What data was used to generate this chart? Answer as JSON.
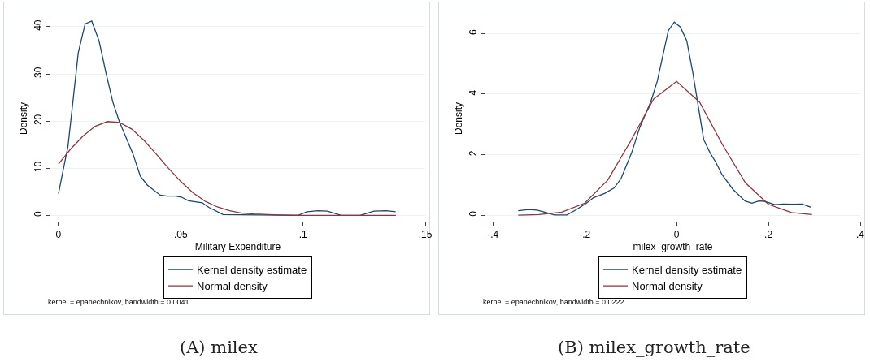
{
  "chart_data": [
    {
      "type": "line",
      "xlabel": "Military Expenditure",
      "ylabel": "Density",
      "xlim": [
        -0.0033,
        0.15
      ],
      "ylim": [
        -1.3,
        42.4
      ],
      "xticks": [
        0,
        {
          "value": 0.05,
          "label": ".05"
        },
        {
          "value": 0.1,
          "label": ".1"
        },
        {
          "value": 0.15,
          "label": ".15"
        }
      ],
      "yticks": [
        0,
        10,
        20,
        30,
        40
      ],
      "grid": "y",
      "legend": "bottom",
      "line_style": "solid",
      "marker": "none",
      "annotations": [
        "kernel = epanechnikov, bandwidth = 0.0041",
        "(A) milex"
      ],
      "series": [
        {
          "name": "Kernel density estimate",
          "color": "#1a476f",
          "x": [
            0,
            0.0039,
            0.0081,
            0.0109,
            0.0136,
            0.0166,
            0.0194,
            0.0222,
            0.0249,
            0.0305,
            0.0335,
            0.0364,
            0.0416,
            0.0446,
            0.0477,
            0.0502,
            0.0532,
            0.0588,
            0.0615,
            0.0673,
            0.098,
            0.1017,
            0.1062,
            0.11,
            0.1156,
            0.1234,
            0.129,
            0.134,
            0.1379
          ],
          "values": [
            4.6,
            14.7,
            34.5,
            40.6,
            41.2,
            37,
            30.3,
            24.1,
            19.9,
            13,
            8.3,
            6.4,
            4.3,
            4.1,
            4.1,
            3.9,
            3.1,
            2.7,
            1.7,
            0.2,
            0,
            0.8,
            1,
            0.9,
            0,
            0,
            0.9,
            1,
            0.8
          ]
        },
        {
          "name": "Normal density",
          "color": "#90353b",
          "x": [
            0,
            0.005,
            0.01,
            0.015,
            0.02,
            0.025,
            0.03,
            0.035,
            0.04,
            0.045,
            0.05,
            0.055,
            0.06,
            0.065,
            0.07,
            0.075,
            0.08,
            0.09,
            0.1,
            0.138
          ],
          "values": [
            10.9,
            14.1,
            16.8,
            18.9,
            19.9,
            19.7,
            18.3,
            15.9,
            13,
            10,
            7.2,
            4.8,
            3,
            1.8,
            1,
            0.5,
            0.3,
            0.1,
            0,
            0
          ]
        }
      ]
    },
    {
      "type": "line",
      "xlabel": "milex_growth_rate",
      "ylabel": "Density",
      "xlim": [
        -0.4164,
        0.4
      ],
      "ylim": [
        -0.21,
        6.6
      ],
      "xticks": [
        {
          "value": -0.4,
          "label": "-.4"
        },
        {
          "value": -0.2,
          "label": "-.2"
        },
        0,
        {
          "value": 0.2,
          "label": ".2"
        },
        {
          "value": 0.4,
          "label": ".4"
        }
      ],
      "yticks": [
        0,
        2,
        4,
        6
      ],
      "grid": "y",
      "legend": "bottom",
      "line_style": "solid",
      "marker": "none",
      "annotations": [
        "kernel = epanechnikov, bandwidth = 0.0222",
        "(B) milex_growth_rate"
      ],
      "series": [
        {
          "name": "Kernel density estimate",
          "color": "#1a476f",
          "x": [
            -0.345,
            -0.322,
            -0.304,
            -0.284,
            -0.266,
            -0.239,
            -0.219,
            -0.198,
            -0.181,
            -0.157,
            -0.136,
            -0.121,
            -0.098,
            -0.08,
            -0.056,
            -0.042,
            -0.018,
            -0.005,
            0.008,
            0.022,
            0.035,
            0.059,
            0.073,
            0.085,
            0.099,
            0.123,
            0.149,
            0.164,
            0.179,
            0.191,
            0.214,
            0.232,
            0.255,
            0.273,
            0.293
          ],
          "values": [
            0.15,
            0.19,
            0.17,
            0.09,
            0.01,
            0.01,
            0.18,
            0.38,
            0.58,
            0.72,
            0.9,
            1.21,
            2.06,
            2.91,
            3.76,
            4.43,
            6.1,
            6.38,
            6.22,
            5.77,
            4.74,
            2.5,
            2.06,
            1.76,
            1.34,
            0.85,
            0.47,
            0.4,
            0.47,
            0.46,
            0.35,
            0.37,
            0.36,
            0.37,
            0.26
          ]
        },
        {
          "name": "Normal density",
          "color": "#90353b",
          "x": [
            -0.345,
            -0.3,
            -0.25,
            -0.2,
            -0.15,
            -0.1,
            -0.05,
            0,
            0.05,
            0.1,
            0.15,
            0.2,
            0.25,
            0.295
          ],
          "values": [
            0,
            0.02,
            0.1,
            0.4,
            1.16,
            2.45,
            3.84,
            4.42,
            3.74,
            2.33,
            1.07,
            0.36,
            0.09,
            0.02
          ]
        }
      ]
    }
  ]
}
